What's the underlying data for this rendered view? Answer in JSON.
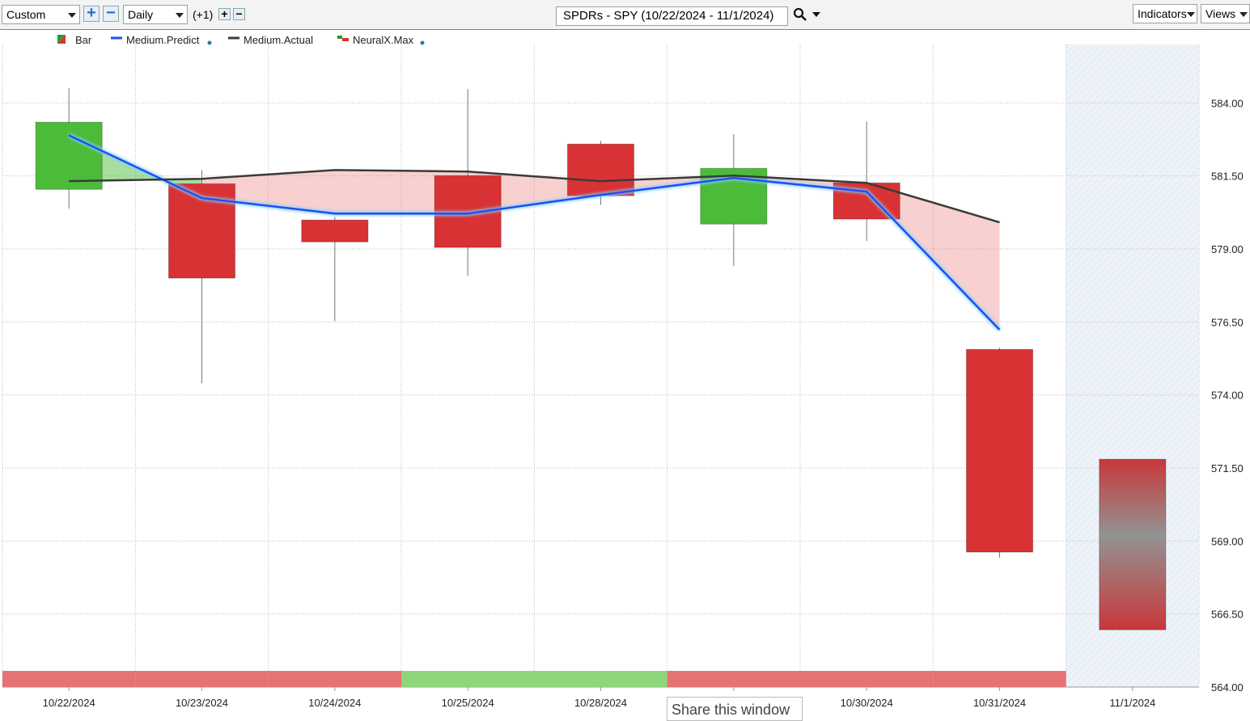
{
  "toolbar": {
    "layout": "Custom",
    "period": "Daily",
    "offset": "(+1)",
    "symbol": "SPDRs - SPY (10/22/2024 - 11/1/2024)",
    "indicators": "Indicators",
    "views": "Views"
  },
  "tooltip": "Share this window",
  "chart_data": {
    "type": "candlestick",
    "categories": [
      "10/22/2024",
      "10/23/2024",
      "10/24/2024",
      "10/25/2024",
      "10/28/2024",
      null,
      "10/30/2024",
      "10/31/2024",
      "11/1/2024"
    ],
    "candles": {
      "name": "Bar",
      "up_color": "#4cbb3a",
      "down_color": "#d93234",
      "open": [
        581.04,
        581.23,
        579.99,
        581.51,
        582.59,
        579.85,
        581.26,
        575.56,
        571.8
      ],
      "high": [
        584.5,
        581.7,
        580.1,
        584.47,
        582.7,
        582.92,
        583.36,
        575.62,
        null
      ],
      "low": [
        580.38,
        574.4,
        576.53,
        578.08,
        580.51,
        578.41,
        579.27,
        568.43,
        null
      ],
      "close": [
        583.34,
        578.0,
        579.24,
        579.05,
        580.82,
        581.76,
        580.02,
        568.62,
        565.96
      ]
    },
    "series": [
      {
        "name": "Medium.Predict",
        "color": "#1f4ef5",
        "values": [
          582.89,
          580.74,
          580.21,
          580.21,
          580.85,
          581.43,
          580.96,
          576.23,
          null
        ]
      },
      {
        "name": "Medium.Actual",
        "color": "#3a3a3a",
        "values": [
          581.32,
          581.4,
          581.7,
          581.65,
          581.32,
          581.51,
          581.26,
          579.91,
          null
        ]
      }
    ],
    "signal": {
      "name": "NeuralX.Max",
      "colors": [
        "#e57373",
        "#e57373",
        "#e57373",
        "#8fd67a",
        "#8fd67a",
        "#e57373",
        "#e57373",
        "#e57373"
      ]
    },
    "ylim": [
      564,
      586
    ],
    "yticks": [
      {
        "value": 564,
        "label": "564.00"
      },
      {
        "value": 566.5,
        "label": "566.50"
      },
      {
        "value": 569,
        "label": "569.00"
      },
      {
        "value": 571.5,
        "label": "571.50"
      },
      {
        "value": 574,
        "label": "574.00"
      },
      {
        "value": 576.5,
        "label": "576.50"
      },
      {
        "value": 579,
        "label": "579.00"
      },
      {
        "value": 581.5,
        "label": "581.50"
      },
      {
        "value": 584,
        "label": "584.00"
      }
    ],
    "grid": true
  }
}
